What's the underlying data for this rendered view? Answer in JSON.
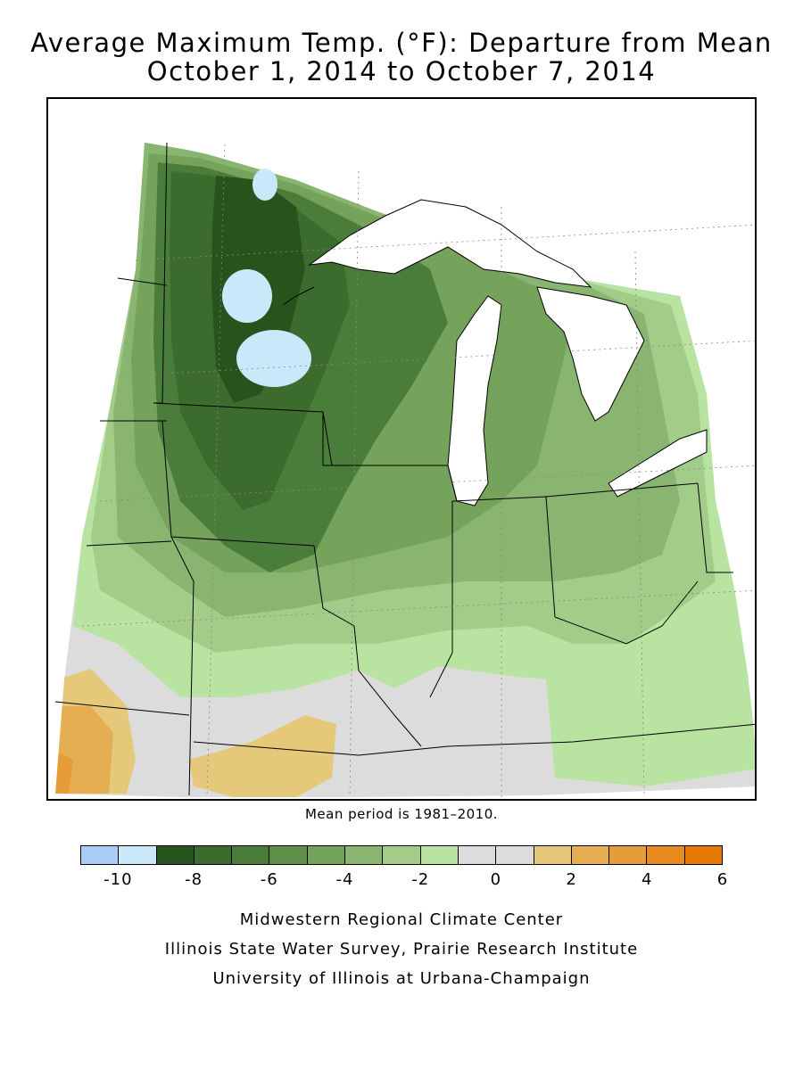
{
  "title": {
    "line1": "Average Maximum Temp. (°F): Departure from Mean",
    "line2": "October 1, 2014 to October 7, 2014"
  },
  "map": {
    "region": "Midwest United States",
    "variable": "Average maximum temperature departure from mean (°F)"
  },
  "mean_note": "Mean period is 1981–2010.",
  "legend": {
    "colors": [
      "#a9cdf7",
      "#c9e9fb",
      "#27541c",
      "#3b6c2d",
      "#4b7d3a",
      "#5e8e48",
      "#75a35b",
      "#89b571",
      "#a3cc89",
      "#b8e3a1",
      "#dcdcdc",
      "#dcdcdc",
      "#e6c87a",
      "#e6ae52",
      "#e69c38",
      "#e88a20",
      "#e67a05"
    ],
    "tick_labels": [
      "-10",
      "-8",
      "-6",
      "-4",
      "-2",
      "0",
      "2",
      "4",
      "6"
    ]
  },
  "credits": {
    "line1": "Midwestern Regional Climate Center",
    "line2": "Illinois State Water Survey, Prairie Research Institute",
    "line3": "University of Illinois at Urbana-Champaign"
  }
}
